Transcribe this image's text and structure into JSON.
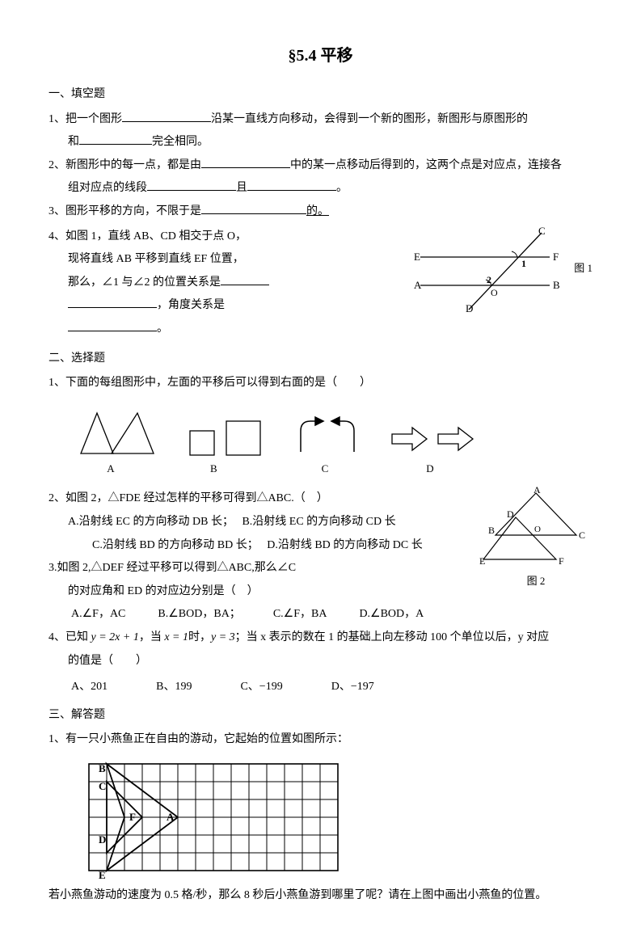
{
  "title": "§5.4 平移",
  "sections": {
    "s1": "一、填空题",
    "s2": "二、选择题",
    "s3": "三、解答题"
  },
  "fill": {
    "q1a": "1、把一个图形",
    "q1b": "沿某一直线方向移动，会得到一个新的图形，新图形与原图形的",
    "q1c": "和",
    "q1d": "完全相同。",
    "q2a": "2、新图形中的每一点，都是由",
    "q2b": "中的某一点移动后得到的，这两个点是对应点，连接各",
    "q2c": "组对应点的线段",
    "q2d": "且",
    "q2e": "。",
    "q3a": "3、图形平移的方向，不限于是",
    "q3b": "的。",
    "q4a": "4、如图 1，直线 AB、CD 相交于点 O，",
    "q4b": "现将直线 AB 平移到直线 EF 位置，",
    "q4c": "那么，∠1 与∠2 的位置关系是",
    "q4d": "，角度关系是",
    "q4e": "。"
  },
  "fig1": {
    "label": "图 1",
    "E": "E",
    "F": "F",
    "A": "A",
    "B": "B",
    "C": "C",
    "D": "D",
    "O": "O",
    "l1": "1",
    "l2": "2",
    "stroke": "#000"
  },
  "choice": {
    "q1": "1、下面的每组图形中，左面的平移后可以得到右面的是（　　）",
    "optA": "A",
    "optB": "B",
    "optC": "C",
    "optD": "D",
    "q2": "2、如图 2，△FDE 经过怎样的平移可得到△ABC.（　）",
    "q2A": "A.沿射线 EC 的方向移动 DB 长；",
    "q2B": "B.沿射线 EC 的方向移动 CD 长",
    "q2C": "C.沿射线 BD 的方向移动 BD 长；",
    "q2D": "D.沿射线 BD 的方向移动 DC 长",
    "q3a": "3.如图 2,△DEF 经过平移可以得到△ABC,那么∠C",
    "q3b": "的对应角和 ED 的对应边分别是（　）",
    "q3A": "A.∠F，AC",
    "q3B": "B.∠BOD，BA；",
    "q3C": "C.∠F，BA",
    "q3D": "D.∠BOD，A",
    "fig2label": "图 2",
    "q4a": "4、已知 ",
    "q4eq1": "y = 2x + 1",
    "q4b": "，当 ",
    "q4eq2": "x = 1",
    "q4c": "时，",
    "q4eq3": "y = 3",
    "q4d": "；当 x 表示的数在 1 的基础上向左移动 100 个单位以后，y 对应",
    "q4e": "的值是（　　）",
    "q4A": "A、201",
    "q4B": "B、199",
    "q4C": "C、−199",
    "q4D": "D、−197"
  },
  "fig2": {
    "A": "A",
    "B": "B",
    "C": "C",
    "D": "D",
    "E": "E",
    "F": "F",
    "O": "O",
    "stroke": "#000"
  },
  "solve": {
    "q1a": "1、有一只小燕鱼正在自由的游动，它起始的位置如图所示：",
    "q1b": "若小燕鱼游动的速度为 0.5 格/秒，那么 8 秒后小燕鱼游到哪里了呢？请在上图中画出小燕鱼的位置。"
  },
  "grid": {
    "cols": 14,
    "rows": 6,
    "cell": 22,
    "stroke": "#000",
    "labels": {
      "A": "A",
      "B": "B",
      "C": "C",
      "D": "D",
      "E": "E",
      "F": "F"
    }
  },
  "shapes": {
    "stroke": "#000"
  }
}
